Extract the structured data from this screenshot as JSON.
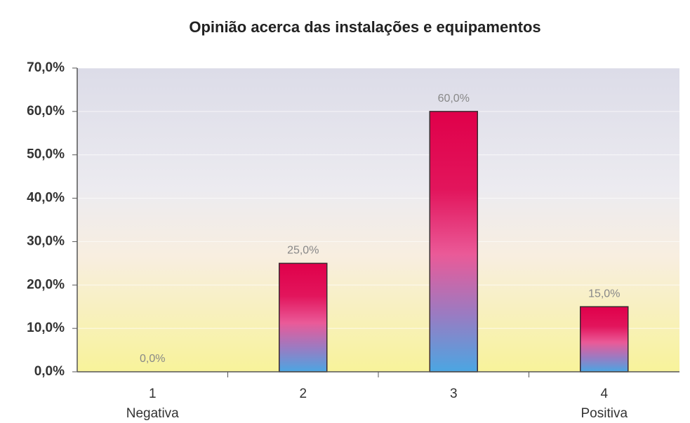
{
  "chart_data": {
    "type": "bar",
    "title": "Opinião acerca das instalações e equipamentos",
    "categories": [
      "1",
      "2",
      "3",
      "4"
    ],
    "category_sublabels": [
      "Negativa",
      null,
      null,
      "Positiva"
    ],
    "values": [
      0,
      25,
      60,
      15
    ],
    "value_labels": [
      "0,0%",
      "25,0%",
      "60,0%",
      "15,0%"
    ],
    "ylim": [
      0,
      70
    ],
    "yticks": [
      {
        "value": 0,
        "label": "0,0%"
      },
      {
        "value": 10,
        "label": "10,0%"
      },
      {
        "value": 20,
        "label": "20,0%"
      },
      {
        "value": 30,
        "label": "30,0%"
      },
      {
        "value": 40,
        "label": "40,0%"
      },
      {
        "value": 50,
        "label": "50,0%"
      },
      {
        "value": 60,
        "label": "60,0%"
      },
      {
        "value": 70,
        "label": "70,0%"
      }
    ],
    "grid": true
  }
}
